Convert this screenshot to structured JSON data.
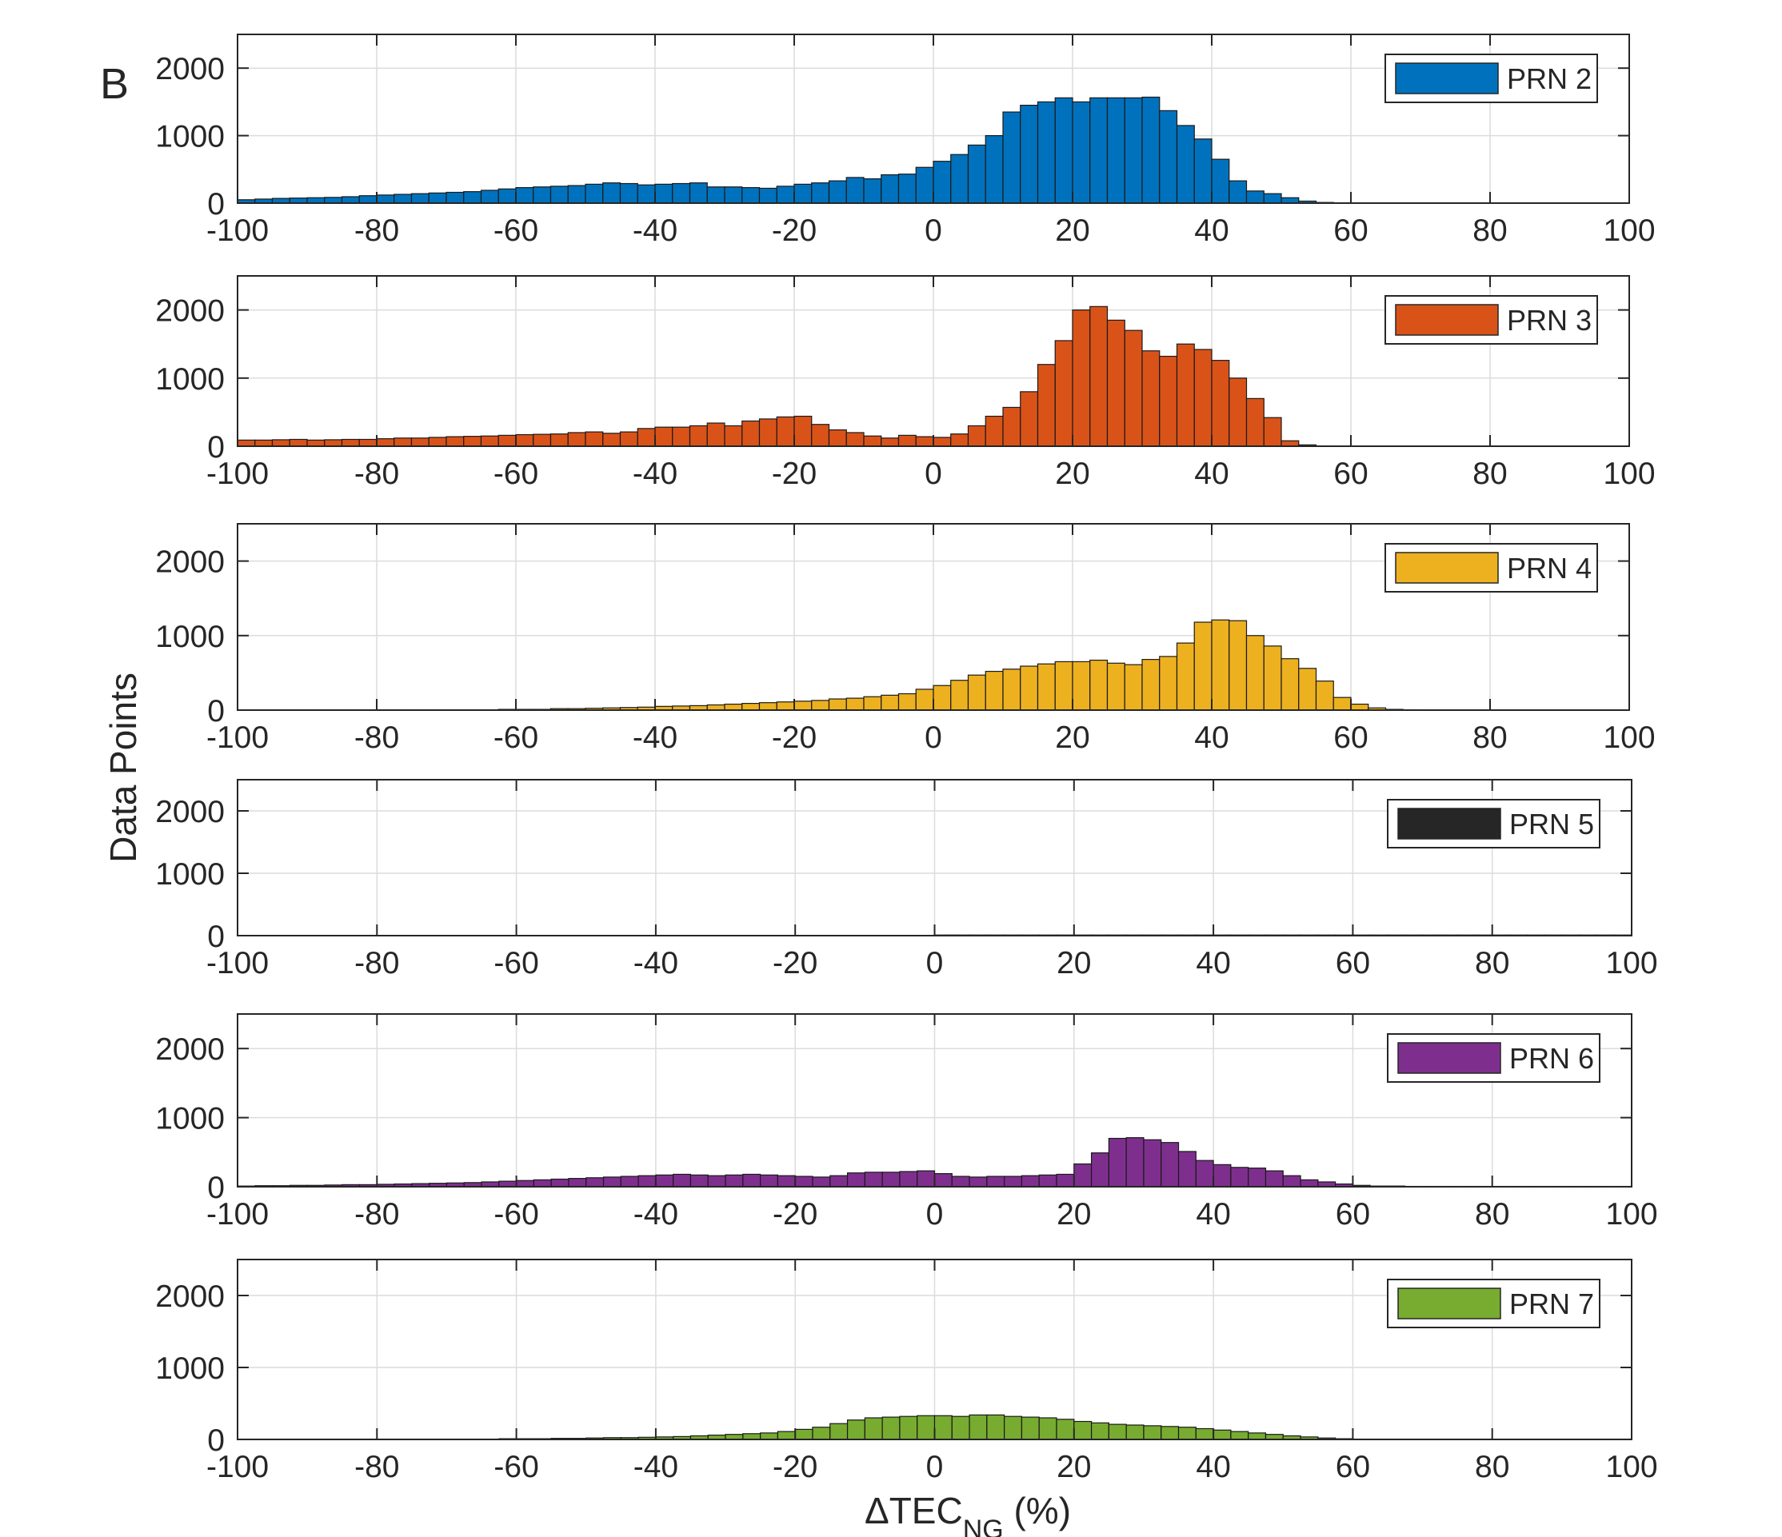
{
  "figure": {
    "panel_letter": "B",
    "ylabel": "Data Points",
    "xlabel_main": "ΔTEC",
    "xlabel_sub": "NG",
    "xlabel_unit": " (%)"
  },
  "chart_data": [
    {
      "type": "bar",
      "legend": "PRN 2",
      "color": "#0072BD",
      "bin_width": 2.5,
      "bin_start": -100,
      "xlim": [
        -100,
        100
      ],
      "ylim": [
        0,
        2500
      ],
      "xticks": [
        "-100",
        "-80",
        "-60",
        "-40",
        "-20",
        "0",
        "20",
        "40",
        "60",
        "80",
        "100"
      ],
      "yticks": [
        "0",
        "1000",
        "2000"
      ],
      "grid": true,
      "legend_position": "top-right",
      "values": [
        50,
        60,
        70,
        75,
        80,
        85,
        95,
        110,
        120,
        130,
        140,
        150,
        160,
        170,
        190,
        210,
        230,
        240,
        250,
        260,
        280,
        300,
        290,
        270,
        280,
        290,
        300,
        240,
        240,
        230,
        220,
        250,
        280,
        300,
        330,
        380,
        360,
        420,
        430,
        530,
        620,
        720,
        860,
        1000,
        1350,
        1450,
        1500,
        1560,
        1500,
        1560,
        1560,
        1560,
        1570,
        1370,
        1150,
        950,
        650,
        330,
        180,
        140,
        80,
        30,
        10,
        5,
        0,
        0,
        0,
        0,
        0,
        0,
        0,
        0,
        0,
        0,
        0,
        0,
        0,
        0,
        0,
        0
      ]
    },
    {
      "type": "bar",
      "legend": "PRN 3",
      "color": "#D95319",
      "bin_width": 2.5,
      "bin_start": -100,
      "xlim": [
        -100,
        100
      ],
      "ylim": [
        0,
        2500
      ],
      "xticks": [
        "-100",
        "-80",
        "-60",
        "-40",
        "-20",
        "0",
        "20",
        "40",
        "60",
        "80",
        "100"
      ],
      "yticks": [
        "0",
        "1000",
        "2000"
      ],
      "grid": true,
      "legend_position": "top-right",
      "values": [
        90,
        90,
        95,
        100,
        90,
        95,
        100,
        100,
        110,
        120,
        120,
        130,
        140,
        145,
        150,
        160,
        170,
        175,
        180,
        200,
        210,
        190,
        210,
        260,
        280,
        280,
        300,
        340,
        300,
        370,
        400,
        430,
        440,
        320,
        240,
        200,
        150,
        120,
        160,
        140,
        130,
        180,
        300,
        440,
        570,
        800,
        1200,
        1550,
        2000,
        2050,
        1850,
        1700,
        1400,
        1320,
        1500,
        1420,
        1260,
        1000,
        700,
        420,
        80,
        20,
        5,
        0,
        0,
        0,
        0,
        0,
        0,
        0,
        0,
        0,
        0,
        0,
        0,
        0,
        0,
        0,
        0,
        0
      ]
    },
    {
      "type": "bar",
      "legend": "PRN 4",
      "color": "#EDB120",
      "bin_width": 2.5,
      "bin_start": -100,
      "xlim": [
        -100,
        100
      ],
      "ylim": [
        0,
        2500
      ],
      "xticks": [
        "-100",
        "-80",
        "-60",
        "-40",
        "-20",
        "0",
        "20",
        "40",
        "60",
        "80",
        "100"
      ],
      "yticks": [
        "0",
        "1000",
        "2000"
      ],
      "grid": true,
      "legend_position": "top-right",
      "values": [
        5,
        5,
        5,
        5,
        5,
        5,
        5,
        5,
        5,
        5,
        5,
        5,
        5,
        5,
        5,
        10,
        10,
        10,
        20,
        20,
        25,
        30,
        35,
        40,
        50,
        55,
        60,
        70,
        80,
        90,
        100,
        110,
        120,
        130,
        150,
        160,
        180,
        200,
        220,
        280,
        330,
        400,
        470,
        520,
        550,
        590,
        620,
        650,
        650,
        670,
        630,
        610,
        680,
        720,
        900,
        1180,
        1210,
        1200,
        1000,
        860,
        690,
        560,
        390,
        170,
        80,
        30,
        10,
        5,
        0,
        0,
        0,
        0,
        0,
        0,
        0,
        0,
        0,
        0,
        0,
        0
      ]
    },
    {
      "type": "bar",
      "legend": "PRN 5",
      "color": "#262626",
      "bin_width": 2.5,
      "bin_start": -100,
      "xlim": [
        -100,
        100
      ],
      "ylim": [
        0,
        2500
      ],
      "xticks": [
        "-100",
        "-80",
        "-60",
        "-40",
        "-20",
        "0",
        "20",
        "40",
        "60",
        "80",
        "100"
      ],
      "yticks": [
        "0",
        "1000",
        "2000"
      ],
      "grid": true,
      "legend_position": "top-right",
      "values": [
        0,
        0,
        0,
        0,
        0,
        0,
        0,
        0,
        0,
        0,
        0,
        0,
        0,
        0,
        0,
        0,
        0,
        0,
        0,
        0,
        0,
        0,
        0,
        0,
        0,
        0,
        0,
        0,
        0,
        0,
        0,
        0,
        0,
        0,
        0,
        0,
        0,
        0,
        0,
        0,
        10,
        10,
        10,
        10,
        10,
        10,
        10,
        10,
        10,
        10,
        10,
        10,
        10,
        10,
        10,
        10,
        10,
        10,
        10,
        10,
        10,
        10,
        10,
        10,
        10,
        10,
        10,
        10,
        10,
        10,
        10,
        10,
        10,
        10,
        10,
        10,
        10,
        10,
        10,
        10
      ]
    },
    {
      "type": "bar",
      "legend": "PRN 6",
      "color": "#7E2F8E",
      "bin_width": 2.5,
      "bin_start": -100,
      "xlim": [
        -100,
        100
      ],
      "ylim": [
        0,
        2500
      ],
      "xticks": [
        "-100",
        "-80",
        "-60",
        "-40",
        "-20",
        "0",
        "20",
        "40",
        "60",
        "80",
        "100"
      ],
      "yticks": [
        "0",
        "1000",
        "2000"
      ],
      "grid": true,
      "legend_position": "top-right",
      "values": [
        10,
        15,
        15,
        20,
        20,
        25,
        30,
        30,
        35,
        40,
        45,
        50,
        55,
        60,
        70,
        80,
        90,
        100,
        110,
        120,
        130,
        140,
        150,
        160,
        170,
        180,
        170,
        160,
        170,
        180,
        170,
        160,
        150,
        140,
        160,
        200,
        210,
        210,
        220,
        230,
        190,
        150,
        140,
        150,
        150,
        160,
        170,
        180,
        330,
        490,
        700,
        710,
        680,
        640,
        510,
        380,
        320,
        280,
        270,
        230,
        160,
        100,
        70,
        40,
        20,
        10,
        10,
        5,
        5,
        5,
        5,
        5,
        5,
        5,
        5,
        5,
        5,
        5,
        5,
        5
      ]
    },
    {
      "type": "bar",
      "legend": "PRN 7",
      "color": "#77AC30",
      "bin_width": 2.5,
      "bin_start": -100,
      "xlim": [
        -100,
        100
      ],
      "ylim": [
        0,
        2500
      ],
      "xticks": [
        "-100",
        "-80",
        "-60",
        "-40",
        "-20",
        "0",
        "20",
        "40",
        "60",
        "80",
        "100"
      ],
      "yticks": [
        "0",
        "1000",
        "2000"
      ],
      "grid": true,
      "legend_position": "top-right",
      "values": [
        5,
        5,
        5,
        5,
        5,
        5,
        5,
        5,
        5,
        5,
        5,
        5,
        5,
        5,
        5,
        10,
        10,
        10,
        15,
        15,
        20,
        25,
        25,
        30,
        35,
        40,
        50,
        60,
        70,
        80,
        90,
        110,
        140,
        170,
        220,
        270,
        300,
        310,
        320,
        330,
        330,
        320,
        340,
        340,
        320,
        310,
        300,
        280,
        250,
        230,
        210,
        200,
        190,
        180,
        170,
        150,
        130,
        110,
        90,
        70,
        50,
        35,
        20,
        10,
        5,
        5,
        5,
        5,
        5,
        5,
        5,
        5,
        5,
        5,
        5,
        5,
        5,
        5,
        5,
        5
      ]
    }
  ]
}
